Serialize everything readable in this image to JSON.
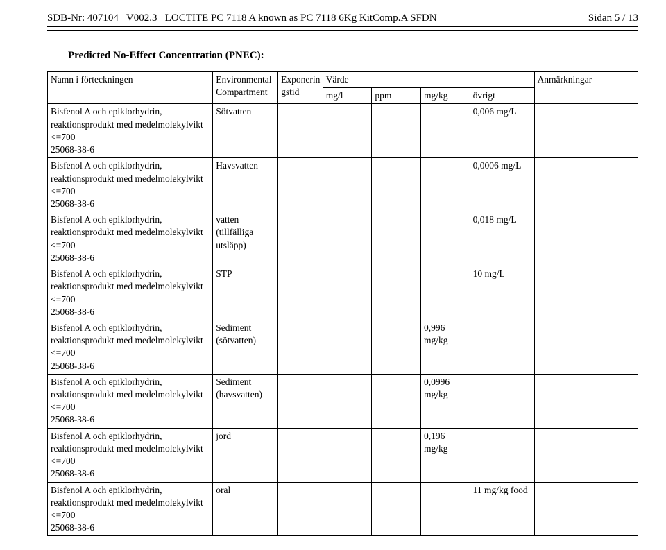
{
  "header": {
    "sdb_left": "SDB-Nr: 407104   V002.3   LOCTITE PC 7118 A known as PC 7118 6Kg KitComp.A SFDN",
    "page": "Sidan 5 / 13"
  },
  "section_title": "Predicted No-Effect Concentration (PNEC):",
  "table": {
    "head1": {
      "name": "Namn i förteckningen",
      "env": "Environmental Compartment",
      "exp": "Exponerin gstid",
      "varde": "Värde",
      "anm": "Anmärkningar"
    },
    "head2": {
      "mgl": "mg/l",
      "ppm": "ppm",
      "mgkg": "mg/kg",
      "ovrigt": "övrigt"
    },
    "rows": [
      {
        "name": "Bisfenol A och epiklorhydrin, reaktionsprodukt med medelmolekylvikt <=700\n25068-38-6",
        "env": "Sötvatten",
        "exp": "",
        "mgl": "",
        "ppm": "",
        "mgkg": "",
        "ovrigt": "0,006 mg/L",
        "anm": ""
      },
      {
        "name": "Bisfenol A och epiklorhydrin, reaktionsprodukt med medelmolekylvikt <=700\n25068-38-6",
        "env": "Havsvatten",
        "exp": "",
        "mgl": "",
        "ppm": "",
        "mgkg": "",
        "ovrigt": "0,0006 mg/L",
        "anm": ""
      },
      {
        "name": "Bisfenol A och epiklorhydrin, reaktionsprodukt med medelmolekylvikt <=700\n25068-38-6",
        "env": "vatten (tillfälliga utsläpp)",
        "exp": "",
        "mgl": "",
        "ppm": "",
        "mgkg": "",
        "ovrigt": "0,018 mg/L",
        "anm": ""
      },
      {
        "name": "Bisfenol A och epiklorhydrin, reaktionsprodukt med medelmolekylvikt <=700\n25068-38-6",
        "env": "STP",
        "exp": "",
        "mgl": "",
        "ppm": "",
        "mgkg": "",
        "ovrigt": "10 mg/L",
        "anm": ""
      },
      {
        "name": "Bisfenol A och epiklorhydrin, reaktionsprodukt med medelmolekylvikt <=700\n25068-38-6",
        "env": "Sediment (sötvatten)",
        "exp": "",
        "mgl": "",
        "ppm": "",
        "mgkg": "0,996 mg/kg",
        "ovrigt": "",
        "anm": ""
      },
      {
        "name": "Bisfenol A och epiklorhydrin, reaktionsprodukt med medelmolekylvikt <=700\n25068-38-6",
        "env": "Sediment (havsvatten)",
        "exp": "",
        "mgl": "",
        "ppm": "",
        "mgkg": "0,0996 mg/kg",
        "ovrigt": "",
        "anm": ""
      },
      {
        "name": "Bisfenol A och epiklorhydrin, reaktionsprodukt med medelmolekylvikt <=700\n25068-38-6",
        "env": "jord",
        "exp": "",
        "mgl": "",
        "ppm": "",
        "mgkg": "0,196 mg/kg",
        "ovrigt": "",
        "anm": ""
      },
      {
        "name": "Bisfenol A och epiklorhydrin, reaktionsprodukt med medelmolekylvikt <=700\n25068-38-6",
        "env": "oral",
        "exp": "",
        "mgl": "",
        "ppm": "",
        "mgkg": "",
        "ovrigt": "11 mg/kg food",
        "anm": ""
      }
    ]
  }
}
